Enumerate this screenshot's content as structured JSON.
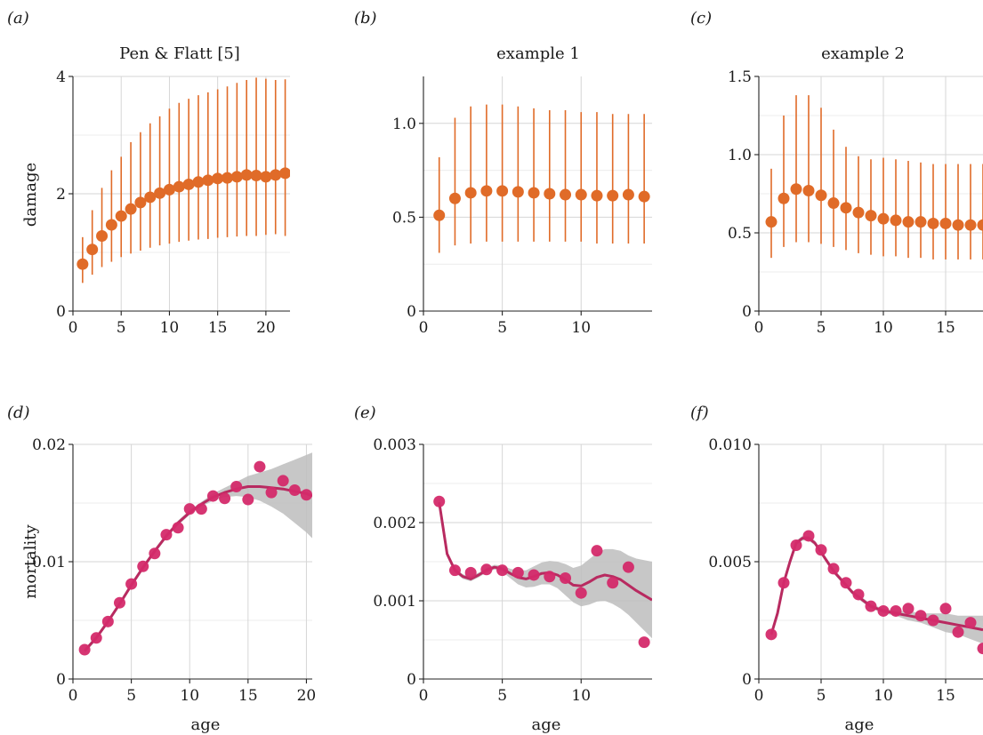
{
  "colors": {
    "damage": "#e06b28",
    "mortality": "#d42a6a",
    "fit": "#b82a60",
    "band": "#bdbdbd"
  },
  "chart_data": [
    {
      "id": "a",
      "type": "scatter",
      "panel_label": "(a)",
      "title": "Pen & Flatt [5]",
      "xlabel": "",
      "ylabel": "damage",
      "xlim": [
        0,
        22.5
      ],
      "ylim": [
        0,
        4
      ],
      "xticks": [
        "0",
        "5",
        "10",
        "15",
        "20"
      ],
      "yticks": [
        "0",
        "2",
        "4"
      ],
      "x": [
        1,
        2,
        3,
        4,
        5,
        6,
        7,
        8,
        9,
        10,
        11,
        12,
        13,
        14,
        15,
        16,
        17,
        18,
        19,
        20,
        21,
        22
      ],
      "y": [
        0.8,
        1.05,
        1.28,
        1.47,
        1.62,
        1.74,
        1.85,
        1.94,
        2.01,
        2.07,
        2.12,
        2.16,
        2.2,
        2.23,
        2.26,
        2.27,
        2.29,
        2.32,
        2.31,
        2.29,
        2.32,
        2.35
      ],
      "lower": [
        0.48,
        0.62,
        0.75,
        0.84,
        0.92,
        0.98,
        1.03,
        1.08,
        1.12,
        1.15,
        1.18,
        1.2,
        1.22,
        1.23,
        1.25,
        1.26,
        1.27,
        1.28,
        1.28,
        1.3,
        1.31,
        1.28
      ],
      "upper": [
        1.26,
        1.72,
        2.1,
        2.4,
        2.63,
        2.88,
        3.05,
        3.2,
        3.32,
        3.45,
        3.55,
        3.62,
        3.68,
        3.73,
        3.78,
        3.83,
        3.89,
        3.94,
        3.98,
        3.96,
        3.94,
        3.95
      ]
    },
    {
      "id": "b",
      "type": "scatter",
      "panel_label": "(b)",
      "title": "example 1",
      "xlabel": "",
      "ylabel": "",
      "xlim": [
        0,
        14.5
      ],
      "ylim": [
        0,
        1.25
      ],
      "xticks": [
        "0",
        "5",
        "10"
      ],
      "yticks": [
        "0",
        "0.5",
        "1.0"
      ],
      "x": [
        1,
        2,
        3,
        4,
        5,
        6,
        7,
        8,
        9,
        10,
        11,
        12,
        13,
        14
      ],
      "y": [
        0.51,
        0.6,
        0.63,
        0.64,
        0.64,
        0.635,
        0.63,
        0.625,
        0.62,
        0.62,
        0.615,
        0.615,
        0.62,
        0.61
      ],
      "lower": [
        0.31,
        0.35,
        0.36,
        0.37,
        0.37,
        0.37,
        0.37,
        0.37,
        0.37,
        0.37,
        0.36,
        0.36,
        0.36,
        0.36
      ],
      "upper": [
        0.82,
        1.03,
        1.09,
        1.1,
        1.1,
        1.09,
        1.08,
        1.07,
        1.07,
        1.06,
        1.06,
        1.05,
        1.05,
        1.05
      ]
    },
    {
      "id": "c",
      "type": "scatter",
      "panel_label": "(c)",
      "title": "example 2",
      "xlabel": "",
      "ylabel": "",
      "xlim": [
        0,
        18
      ],
      "ylim": [
        0,
        1.5
      ],
      "xticks": [
        "0",
        "5",
        "10",
        "15"
      ],
      "yticks": [
        "0",
        "0.5",
        "1.0",
        "1.5"
      ],
      "x": [
        1,
        2,
        3,
        4,
        5,
        6,
        7,
        8,
        9,
        10,
        11,
        12,
        13,
        14,
        15,
        16,
        17,
        18
      ],
      "y": [
        0.57,
        0.72,
        0.78,
        0.77,
        0.74,
        0.69,
        0.66,
        0.63,
        0.61,
        0.59,
        0.58,
        0.57,
        0.57,
        0.56,
        0.56,
        0.55,
        0.55,
        0.55
      ],
      "lower": [
        0.34,
        0.41,
        0.44,
        0.44,
        0.43,
        0.41,
        0.39,
        0.37,
        0.36,
        0.35,
        0.35,
        0.34,
        0.34,
        0.33,
        0.33,
        0.33,
        0.33,
        0.33
      ],
      "upper": [
        0.91,
        1.25,
        1.38,
        1.38,
        1.3,
        1.16,
        1.05,
        0.99,
        0.97,
        0.98,
        0.97,
        0.96,
        0.95,
        0.94,
        0.94,
        0.94,
        0.94,
        0.94
      ]
    },
    {
      "id": "d",
      "type": "scatter",
      "panel_label": "(d)",
      "title": "",
      "xlabel": "age",
      "ylabel": "mortality",
      "xlim": [
        0,
        20.5
      ],
      "ylim": [
        0,
        0.02
      ],
      "xticks": [
        "0",
        "5",
        "10",
        "15",
        "20"
      ],
      "yticks": [
        "0",
        "0.01",
        "0.02"
      ],
      "x": [
        1,
        2,
        3,
        4,
        5,
        6,
        7,
        8,
        9,
        10,
        11,
        12,
        13,
        14,
        15,
        16,
        17,
        18,
        19,
        20
      ],
      "y": [
        0.0025,
        0.0035,
        0.0049,
        0.0065,
        0.0081,
        0.0096,
        0.0107,
        0.0123,
        0.0129,
        0.0145,
        0.0145,
        0.0156,
        0.0154,
        0.0164,
        0.0153,
        0.0181,
        0.0159,
        0.0169,
        0.0161,
        0.0157
      ],
      "fit_x": [
        1,
        2,
        3,
        4,
        5,
        6,
        7,
        8,
        9,
        10,
        11,
        12,
        13,
        14,
        15,
        16,
        17,
        18,
        19,
        20,
        20.5
      ],
      "fit_y": [
        0.0024,
        0.0035,
        0.0049,
        0.0064,
        0.008,
        0.0095,
        0.0109,
        0.0122,
        0.0133,
        0.0142,
        0.0149,
        0.0155,
        0.0159,
        0.0162,
        0.0164,
        0.0164,
        0.0163,
        0.0162,
        0.016,
        0.0158,
        0.0156
      ],
      "band_lower": [
        0.0022,
        0.0033,
        0.0047,
        0.0062,
        0.0078,
        0.0093,
        0.0107,
        0.012,
        0.0131,
        0.014,
        0.0147,
        0.0152,
        0.0155,
        0.0156,
        0.0155,
        0.0152,
        0.0147,
        0.0141,
        0.0133,
        0.0125,
        0.012
      ],
      "band_upper": [
        0.0026,
        0.0037,
        0.0051,
        0.0066,
        0.0082,
        0.0097,
        0.0111,
        0.0124,
        0.0135,
        0.0144,
        0.0151,
        0.0158,
        0.0163,
        0.0168,
        0.0173,
        0.0176,
        0.0179,
        0.0183,
        0.0187,
        0.0191,
        0.0193
      ]
    },
    {
      "id": "e",
      "type": "scatter",
      "panel_label": "(e)",
      "title": "",
      "xlabel": "age",
      "ylabel": "",
      "xlim": [
        0,
        14.5
      ],
      "ylim": [
        0,
        0.003
      ],
      "xticks": [
        "0",
        "5",
        "10"
      ],
      "yticks": [
        "0",
        "0.001",
        "0.002",
        "0.003"
      ],
      "x": [
        1,
        2,
        3,
        4,
        5,
        6,
        7,
        8,
        9,
        10,
        11,
        12,
        13,
        14
      ],
      "y": [
        0.00227,
        0.00139,
        0.00136,
        0.0014,
        0.00139,
        0.00136,
        0.00133,
        0.00131,
        0.00129,
        0.0011,
        0.00164,
        0.00123,
        0.00143,
        0.00047
      ],
      "fit_x": [
        1,
        1.5,
        2,
        2.5,
        3,
        3.5,
        4,
        4.5,
        5,
        5.5,
        6,
        6.5,
        7,
        7.5,
        8,
        8.5,
        9,
        9.5,
        10,
        10.5,
        11,
        11.5,
        12,
        12.5,
        13,
        13.5,
        14,
        14.5
      ],
      "fit_y": [
        0.00226,
        0.0016,
        0.00139,
        0.00131,
        0.00128,
        0.00133,
        0.00139,
        0.00143,
        0.00141,
        0.00135,
        0.0013,
        0.00128,
        0.00131,
        0.00135,
        0.00136,
        0.00133,
        0.00127,
        0.0012,
        0.00119,
        0.00124,
        0.0013,
        0.00133,
        0.00131,
        0.00127,
        0.0012,
        0.00113,
        0.00107,
        0.00101
      ],
      "band_lower": [
        0.00222,
        0.00157,
        0.00136,
        0.00128,
        0.00125,
        0.0013,
        0.00136,
        0.0014,
        0.00137,
        0.00129,
        0.00121,
        0.00117,
        0.00118,
        0.00121,
        0.00121,
        0.00116,
        0.00107,
        0.00098,
        0.00093,
        0.00095,
        0.00099,
        0.001,
        0.00096,
        0.0009,
        0.00082,
        0.00072,
        0.00062,
        0.00052
      ],
      "band_upper": [
        0.0023,
        0.00163,
        0.00142,
        0.00134,
        0.00131,
        0.00136,
        0.00142,
        0.00146,
        0.00145,
        0.00141,
        0.00139,
        0.00139,
        0.00144,
        0.00149,
        0.00151,
        0.0015,
        0.00147,
        0.00142,
        0.00145,
        0.00153,
        0.00161,
        0.00166,
        0.00166,
        0.00164,
        0.00158,
        0.00154,
        0.00152,
        0.0015
      ]
    },
    {
      "id": "f",
      "type": "scatter",
      "panel_label": "(f)",
      "title": "",
      "xlabel": "age",
      "ylabel": "",
      "xlim": [
        0,
        18
      ],
      "ylim": [
        0,
        0.01
      ],
      "xticks": [
        "0",
        "5",
        "10",
        "15"
      ],
      "yticks": [
        "0",
        "0.005",
        "0.010"
      ],
      "x": [
        1,
        2,
        3,
        4,
        5,
        6,
        7,
        8,
        9,
        10,
        11,
        12,
        13,
        14,
        15,
        16,
        17,
        18
      ],
      "y": [
        0.0019,
        0.0041,
        0.0057,
        0.0061,
        0.0055,
        0.0047,
        0.0041,
        0.0036,
        0.0031,
        0.0029,
        0.0029,
        0.003,
        0.0027,
        0.0025,
        0.003,
        0.002,
        0.0024,
        0.0013
      ],
      "fit_x": [
        1,
        1.5,
        2,
        2.5,
        3,
        3.5,
        4,
        4.5,
        5,
        5.5,
        6,
        6.5,
        7,
        7.5,
        8,
        8.5,
        9,
        9.5,
        10,
        11,
        12,
        13,
        14,
        15,
        16,
        17,
        18
      ],
      "fit_y": [
        0.0019,
        0.0028,
        0.0041,
        0.005,
        0.0058,
        0.006,
        0.006,
        0.0058,
        0.0054,
        0.005,
        0.0046,
        0.0043,
        0.004,
        0.0037,
        0.0035,
        0.0033,
        0.0031,
        0.003,
        0.0029,
        0.0028,
        0.0027,
        0.0026,
        0.0025,
        0.0024,
        0.0023,
        0.0022,
        0.0021
      ],
      "band_lower": [
        0.0018,
        0.0027,
        0.004,
        0.0049,
        0.0057,
        0.0059,
        0.0059,
        0.0057,
        0.0053,
        0.0049,
        0.0045,
        0.0042,
        0.0039,
        0.0036,
        0.0034,
        0.0032,
        0.003,
        0.0029,
        0.0028,
        0.0027,
        0.0025,
        0.0024,
        0.0022,
        0.002,
        0.0019,
        0.0017,
        0.0015
      ],
      "band_upper": [
        0.002,
        0.0029,
        0.0042,
        0.0051,
        0.0059,
        0.0061,
        0.0061,
        0.0059,
        0.0055,
        0.0051,
        0.0047,
        0.0044,
        0.0041,
        0.0038,
        0.0036,
        0.0034,
        0.0032,
        0.0031,
        0.003,
        0.0029,
        0.0029,
        0.0028,
        0.0028,
        0.0028,
        0.0027,
        0.0027,
        0.0027
      ]
    }
  ]
}
